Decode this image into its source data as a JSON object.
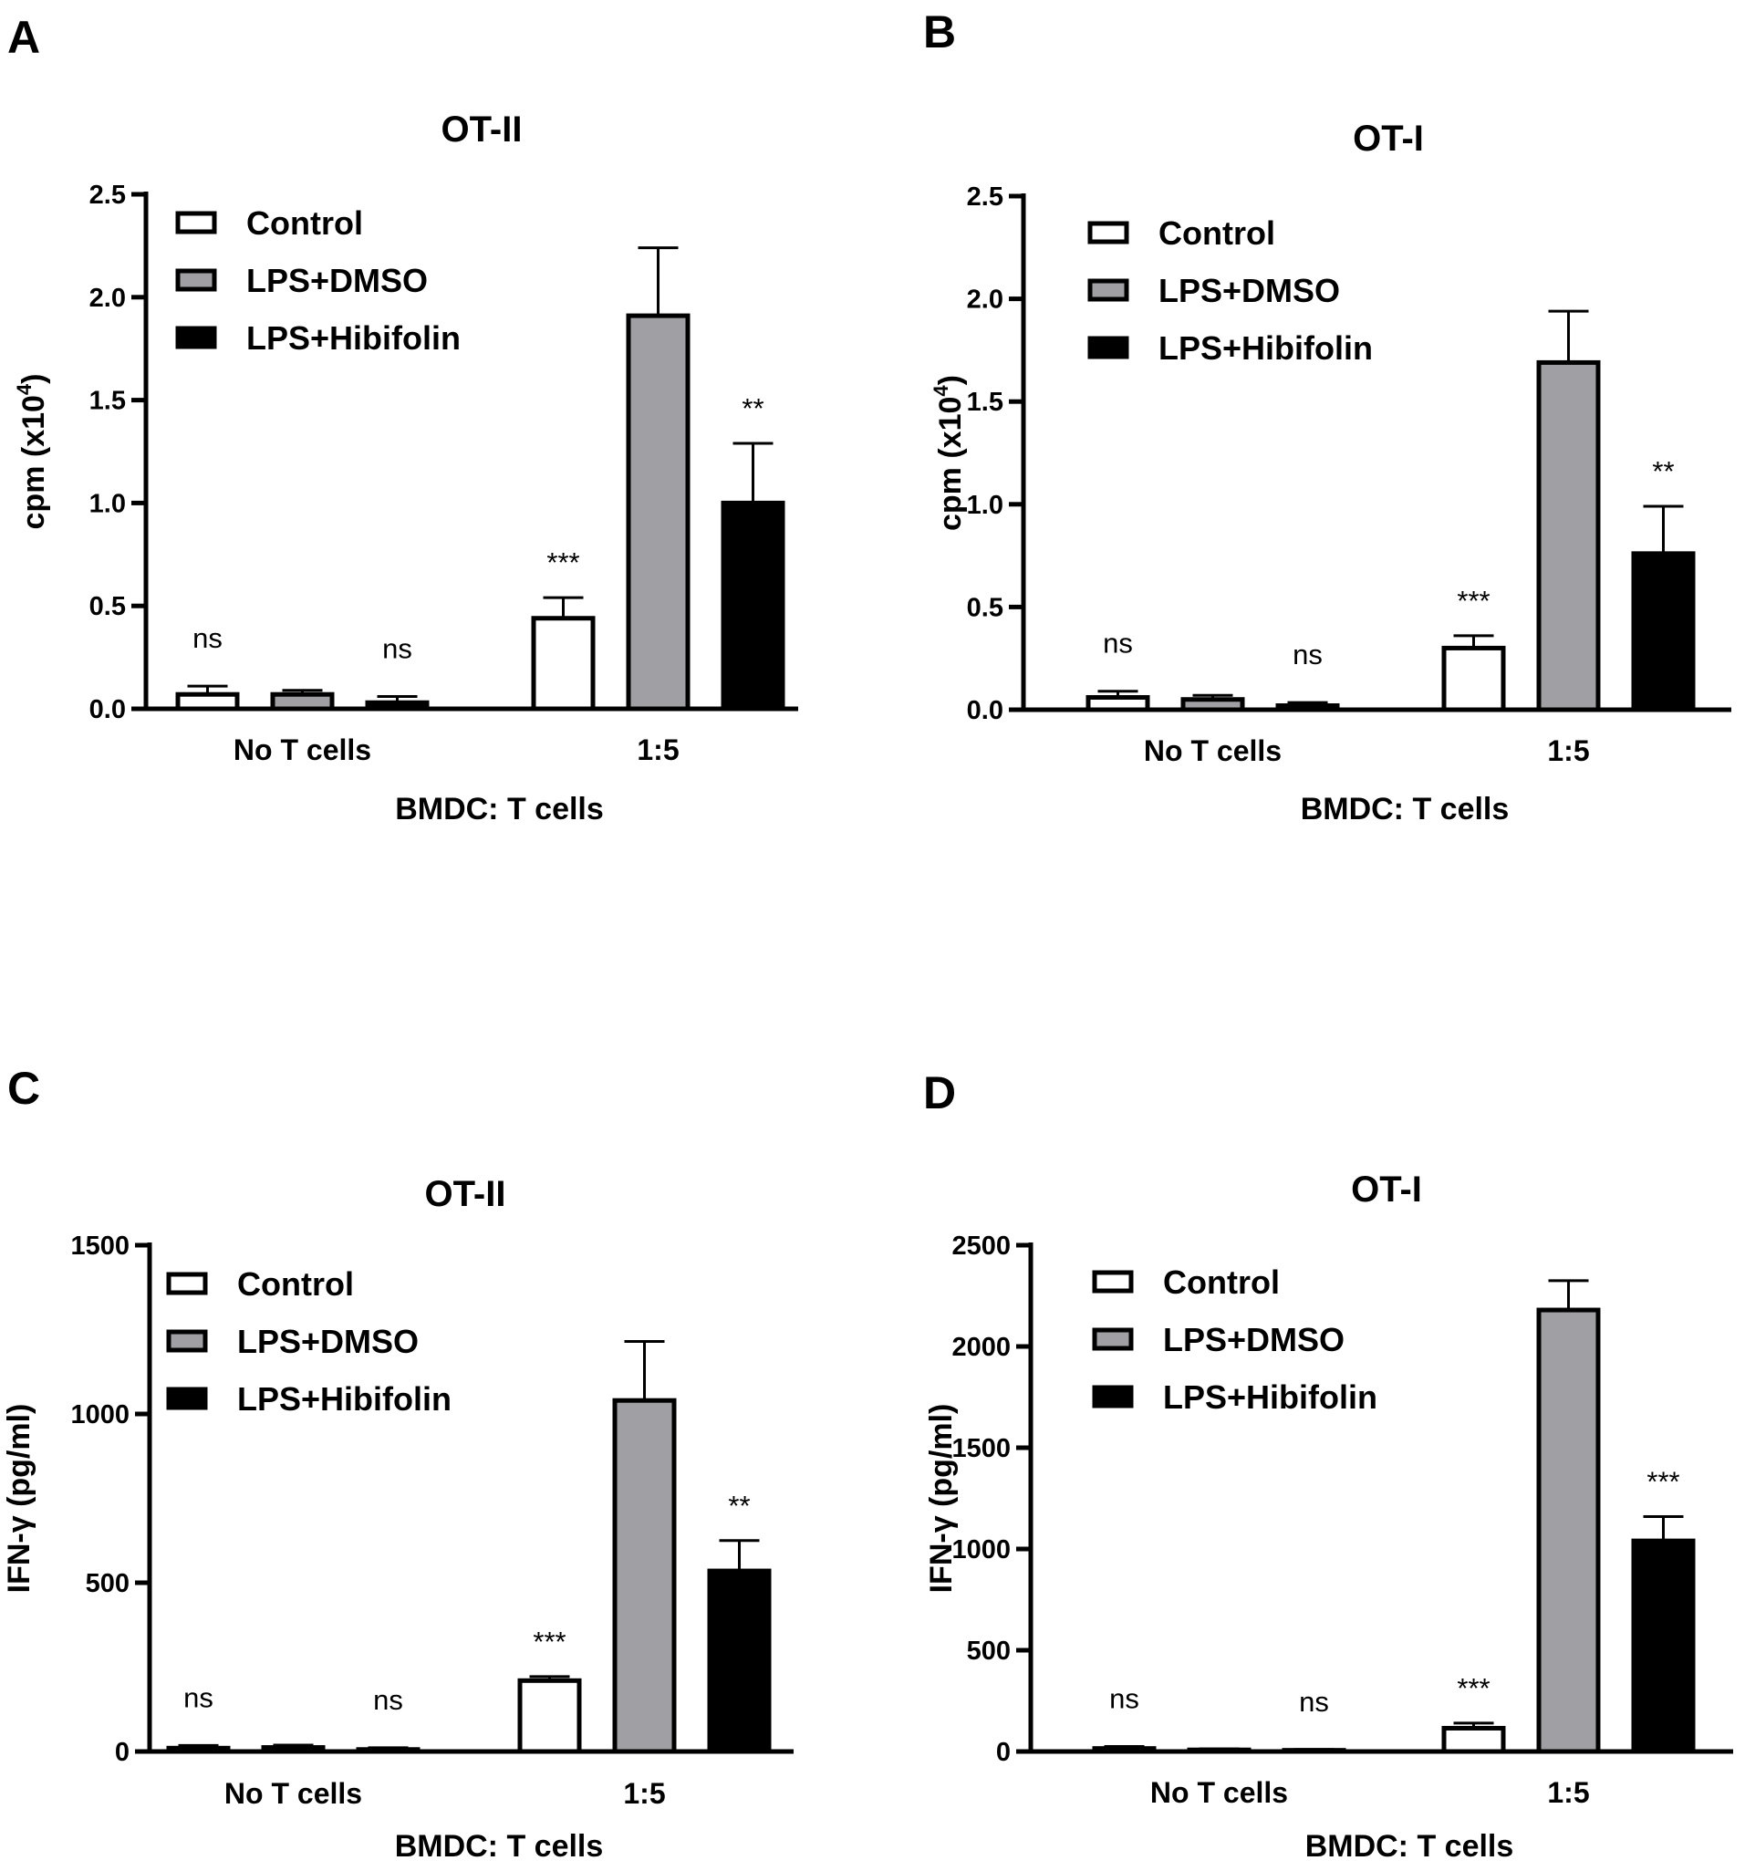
{
  "colors": {
    "Control": "#ffffff",
    "LPS+DMSO": "#a0a0a4",
    "LPS+Hibifolin": "#000000"
  },
  "chart_data": [
    {
      "type": "bar",
      "panel": "A",
      "title": "OT-II",
      "xlabel": "BMDC: T cells",
      "ylabel_main": "cpm (x10",
      "ylabel_sup": "4",
      "ylabel_close": ")",
      "ylim": [
        0,
        2.5
      ],
      "yticks": [
        "0.0",
        "0.5",
        "1.0",
        "1.5",
        "2.0",
        "2.5"
      ],
      "categories": [
        "No T cells",
        "1:5"
      ],
      "series": [
        {
          "name": "Control",
          "values": [
            0.07,
            0.44
          ],
          "errors": [
            0.04,
            0.1
          ],
          "annotations": [
            "ns",
            "***"
          ]
        },
        {
          "name": "LPS+DMSO",
          "values": [
            0.07,
            1.91
          ],
          "errors": [
            0.02,
            0.33
          ],
          "annotations": [
            "",
            ""
          ]
        },
        {
          "name": "LPS+Hibifolin",
          "values": [
            0.03,
            1.0
          ],
          "errors": [
            0.03,
            0.29
          ],
          "annotations": [
            "ns",
            "**"
          ]
        }
      ]
    },
    {
      "type": "bar",
      "panel": "B",
      "title": "OT-I",
      "xlabel": "BMDC: T cells",
      "ylabel_main": "cpm (x10",
      "ylabel_sup": "4",
      "ylabel_close": ")",
      "ylim": [
        0,
        2.5
      ],
      "yticks": [
        "0.0",
        "0.5",
        "1.0",
        "1.5",
        "2.0",
        "2.5"
      ],
      "categories": [
        "No T cells",
        "1:5"
      ],
      "series": [
        {
          "name": "Control",
          "values": [
            0.06,
            0.3
          ],
          "errors": [
            0.03,
            0.06
          ],
          "annotations": [
            "ns",
            "***"
          ]
        },
        {
          "name": "LPS+DMSO",
          "values": [
            0.05,
            1.69
          ],
          "errors": [
            0.02,
            0.25
          ],
          "annotations": [
            "",
            ""
          ]
        },
        {
          "name": "LPS+Hibifolin",
          "values": [
            0.02,
            0.76
          ],
          "errors": [
            0.015,
            0.23
          ],
          "annotations": [
            "ns",
            "**"
          ]
        }
      ]
    },
    {
      "type": "bar",
      "panel": "C",
      "title": "OT-II",
      "xlabel": "BMDC: T cells",
      "ylabel_main": "IFN-γ (pg/ml)",
      "ylabel_sup": "",
      "ylabel_close": "",
      "ylim": [
        0,
        1500
      ],
      "yticks": [
        "0",
        "500",
        "1000",
        "1500"
      ],
      "categories": [
        "No T cells",
        "1:5"
      ],
      "series": [
        {
          "name": "Control",
          "values": [
            10,
            210
          ],
          "errors": [
            8,
            12
          ],
          "annotations": [
            "ns",
            "***"
          ]
        },
        {
          "name": "LPS+DMSO",
          "values": [
            12,
            1040
          ],
          "errors": [
            7,
            175
          ],
          "annotations": [
            "",
            ""
          ]
        },
        {
          "name": "LPS+Hibifolin",
          "values": [
            6,
            535
          ],
          "errors": [
            5,
            90
          ],
          "annotations": [
            "ns",
            "**"
          ]
        }
      ]
    },
    {
      "type": "bar",
      "panel": "D",
      "title": "OT-I",
      "xlabel": "BMDC: T cells",
      "ylabel_main": "IFN-γ (pg/ml)",
      "ylabel_sup": "",
      "ylabel_close": "",
      "ylim": [
        0,
        2500
      ],
      "yticks": [
        "0",
        "500",
        "1000",
        "1500",
        "2000",
        "2500"
      ],
      "categories": [
        "No T cells",
        "1:5"
      ],
      "series": [
        {
          "name": "Control",
          "values": [
            15,
            115
          ],
          "errors": [
            10,
            25
          ],
          "annotations": [
            "ns",
            "***"
          ]
        },
        {
          "name": "LPS+DMSO",
          "values": [
            8,
            2180
          ],
          "errors": [
            5,
            145
          ],
          "annotations": [
            "",
            ""
          ]
        },
        {
          "name": "LPS+Hibifolin",
          "values": [
            6,
            1040
          ],
          "errors": [
            4,
            120
          ],
          "annotations": [
            "ns",
            "***"
          ]
        }
      ]
    }
  ]
}
